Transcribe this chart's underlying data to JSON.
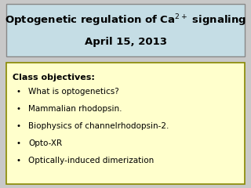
{
  "title_line1": "Optogenetic regulation of Ca$^{2+}$ signaling",
  "title_line2": "April 15, 2013",
  "title_bg_color": "#c5dde5",
  "title_border_color": "#888888",
  "title_fontsize": 9.5,
  "title_font_weight": "bold",
  "body_bg_color": "#ffffcc",
  "body_border_color": "#888800",
  "class_objectives_label": "Class objectives:",
  "bullet_items": [
    "What is optogenetics?",
    "Mammalian rhodopsin.",
    "Biophysics of channelrhodopsin-2.",
    "Opto-XR",
    "Optically-induced dimerization"
  ],
  "slide_bg_color": "#c8c8c8",
  "body_fontsize": 7.5,
  "label_fontsize": 8.0
}
